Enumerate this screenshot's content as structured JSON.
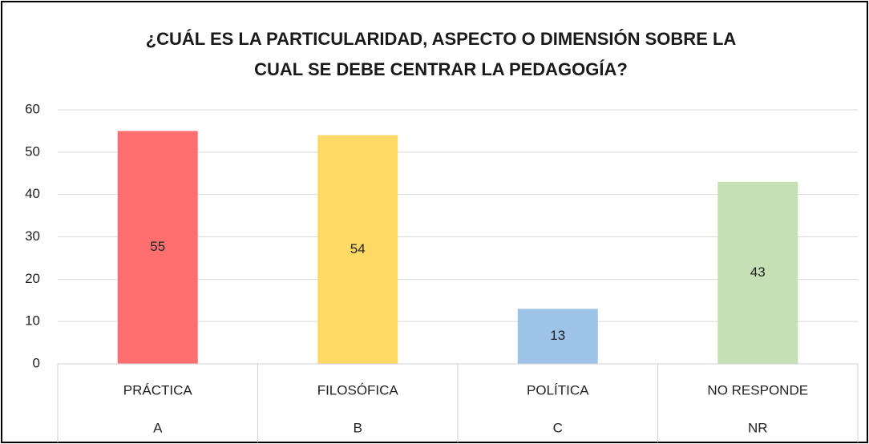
{
  "chart_data": {
    "type": "bar",
    "title": [
      "¿CUÁL ES LA PARTICULARIDAD, ASPECTO O DIMENSIÓN SOBRE LA",
      "CUAL SE DEBE CENTRAR LA PEDAGOGÍA?"
    ],
    "categories": [
      "PRÁCTICA",
      "FILOSÓFICA",
      "POLÍTICA",
      "NO RESPONDE"
    ],
    "category_codes": [
      "A",
      "B",
      "C",
      "NR"
    ],
    "values": [
      55,
      54,
      13,
      43
    ],
    "colors": [
      "#ff6f6f",
      "#ffd966",
      "#9dc3e6",
      "#c5e0b4"
    ],
    "ylim": [
      0,
      60
    ],
    "yticks": [
      0,
      10,
      20,
      30,
      40,
      50,
      60
    ],
    "grid": true
  }
}
